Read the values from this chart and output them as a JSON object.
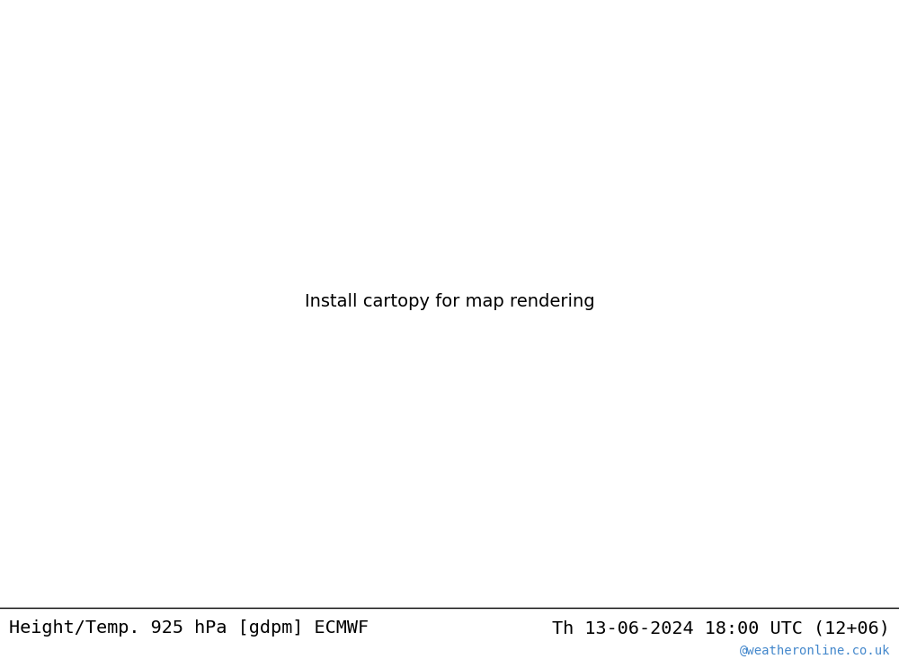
{
  "title_left": "Height/Temp. 925 hPa [gdpm] ECMWF",
  "title_right": "Th 13-06-2024 18:00 UTC (12+06)",
  "watermark": "@weatheronline.co.uk",
  "title_color": "#000000",
  "watermark_color": "#4488cc",
  "title_fontsize": 14.5,
  "watermark_fontsize": 10,
  "figsize": [
    10.0,
    7.33
  ],
  "dpi": 100,
  "sea_color": "#dcdcdc",
  "land_color": "#c8e6a0",
  "coast_color": "#888888",
  "border_color": "#aaaaaa",
  "geo_color": "#000000",
  "temp_orange_color": "#ff8800",
  "temp_green_color": "#88cc00",
  "temp_teal_color": "#00aaaa",
  "temp_red_color": "#dd2200",
  "temp_magenta_color": "#cc0088",
  "bottom_bar_color": "#ffffff"
}
